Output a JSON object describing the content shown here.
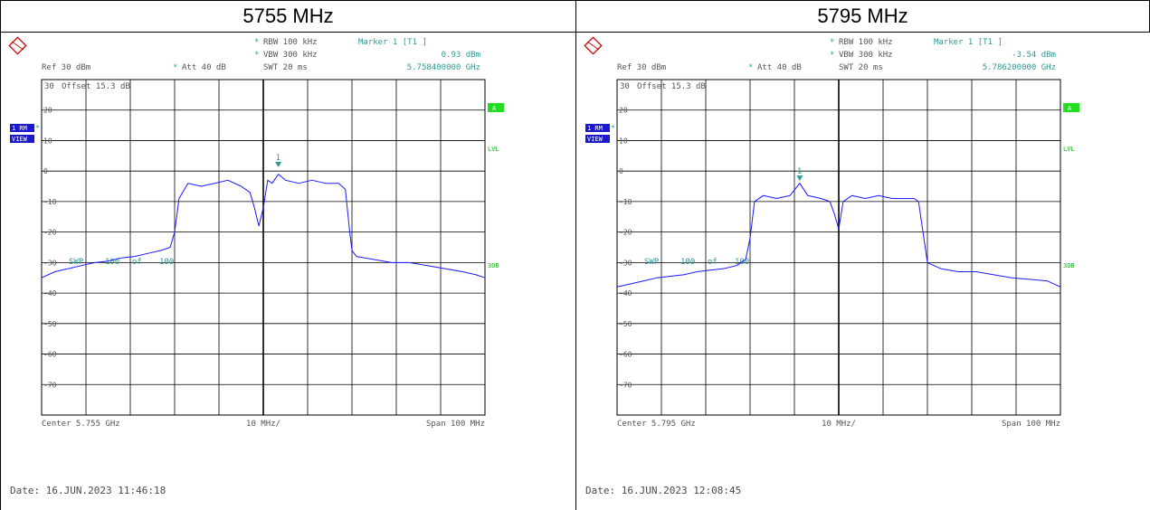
{
  "panels": [
    {
      "title": "5755 MHz",
      "header": {
        "rbw": "RBW 100 kHz",
        "vbw": "VBW 300 kHz",
        "swt": "SWT 20 ms",
        "marker_label": "Marker 1 [T1 ]",
        "marker_level": "0.93 dBm",
        "marker_freq": "5.758400000 GHz",
        "ref": "Ref  30 dBm",
        "att": "Att  40 dB",
        "offset": "Offset  15.3 dB",
        "star": "*"
      },
      "side": {
        "trace_box": "1 RM",
        "view_box": "VIEW",
        "a_box": "A",
        "lvl": "LVL",
        "tdb": "3DB"
      },
      "swp": {
        "label": "SWP",
        "count": "100",
        "of": "of",
        "total": "100"
      },
      "footer": {
        "center": "Center 5.755 GHz",
        "div": "10 MHz/",
        "span": "Span 100 MHz"
      },
      "date": "Date: 16.JUN.2023  11:46:18",
      "chart_data": {
        "type": "line",
        "xlabel": "",
        "ylabel": "",
        "x_range_mhz": [
          5705,
          5805
        ],
        "ylim": [
          -80,
          30
        ],
        "y_ticks": [
          20,
          10,
          0,
          -10,
          -20,
          -30,
          -40,
          -50,
          -60,
          -70
        ],
        "y_tick_labels": [
          "20",
          "10",
          "0",
          "-10",
          "-20",
          "-30",
          "-40",
          "-50",
          "-60",
          "-70"
        ],
        "top_tick_label": "30",
        "grid": true,
        "marker": {
          "name": "1",
          "x": 5758.4,
          "y": 0.93
        },
        "series": [
          {
            "x": [
              5705,
              5708,
              5711,
              5714,
              5717,
              5720,
              5723,
              5726,
              5729,
              5732,
              5734,
              5735,
              5736,
              5738,
              5741,
              5744,
              5747,
              5750,
              5752,
              5753,
              5754,
              5755,
              5756,
              5757,
              5758.4,
              5760,
              5763,
              5766,
              5769,
              5772,
              5773.5,
              5774.5,
              5775,
              5776,
              5780,
              5784,
              5788,
              5792,
              5796,
              5800,
              5803,
              5805
            ],
            "y": [
              -35,
              -33,
              -32,
              -31,
              -30,
              -29.5,
              -28.5,
              -28,
              -27,
              -26,
              -25,
              -20,
              -9,
              -4,
              -5,
              -4,
              -3,
              -5,
              -7,
              -12,
              -18,
              -12,
              -3,
              -4,
              -1,
              -3,
              -4,
              -3,
              -4,
              -4,
              -6,
              -20,
              -26,
              -28,
              -29,
              -30,
              -30,
              -31,
              -32,
              -33,
              -34,
              -35
            ]
          }
        ]
      }
    },
    {
      "title": "5795 MHz",
      "header": {
        "rbw": "RBW 100 kHz",
        "vbw": "VBW 300 kHz",
        "swt": "SWT 20 ms",
        "marker_label": "Marker 1 [T1 ]",
        "marker_level": "-3.54 dBm",
        "marker_freq": "5.786200000 GHz",
        "ref": "Ref  30 dBm",
        "att": "Att  40 dB",
        "offset": "Offset  15.3 dB",
        "star": "*"
      },
      "side": {
        "trace_box": "1 RM",
        "view_box": "VIEW",
        "a_box": "A",
        "lvl": "LVL",
        "tdb": "3DB"
      },
      "swp": {
        "label": "SWP",
        "count": "100",
        "of": "of",
        "total": "100"
      },
      "footer": {
        "center": "Center 5.795 GHz",
        "div": "10 MHz/",
        "span": "Span 100 MHz"
      },
      "date": "Date: 16.JUN.2023  12:08:45",
      "chart_data": {
        "type": "line",
        "xlabel": "",
        "ylabel": "",
        "x_range_mhz": [
          5745,
          5845
        ],
        "ylim": [
          -80,
          30
        ],
        "y_ticks": [
          20,
          10,
          0,
          -10,
          -20,
          -30,
          -40,
          -50,
          -60,
          -70
        ],
        "y_tick_labels": [
          "20",
          "10",
          "0",
          "-10",
          "-20",
          "-30",
          "-40",
          "-50",
          "-60",
          "-70"
        ],
        "top_tick_label": "30",
        "grid": true,
        "marker": {
          "name": "1",
          "x": 5786.2,
          "y": -3.54
        },
        "series": [
          {
            "x": [
              5745,
              5748,
              5751,
              5754,
              5757,
              5760,
              5763,
              5766,
              5769,
              5772,
              5774,
              5775,
              5776,
              5778,
              5781,
              5784,
              5786.2,
              5788,
              5791,
              5793,
              5794,
              5795,
              5796,
              5798,
              5801,
              5804,
              5807,
              5810,
              5812,
              5813,
              5814,
              5815,
              5818,
              5822,
              5826,
              5830,
              5834,
              5838,
              5842,
              5845
            ],
            "y": [
              -38,
              -37,
              -36,
              -35,
              -34.5,
              -34,
              -33,
              -32.5,
              -32,
              -31,
              -29,
              -22,
              -10,
              -8,
              -9,
              -8,
              -4,
              -8,
              -9,
              -10,
              -14,
              -19,
              -10,
              -8,
              -9,
              -8,
              -9,
              -9,
              -9,
              -10,
              -20,
              -30,
              -32,
              -33,
              -33,
              -34,
              -35,
              -35.5,
              -36,
              -38
            ]
          }
        ]
      }
    }
  ]
}
